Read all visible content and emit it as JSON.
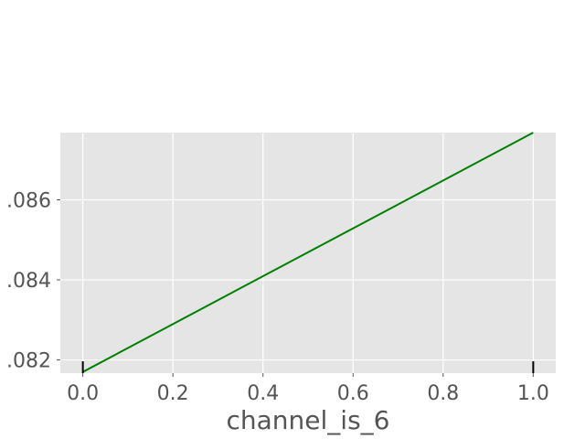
{
  "chart_data": {
    "type": "line",
    "title": "",
    "xlabel": "channel_is_6",
    "ylabel": "",
    "xlim": [
      -0.05,
      1.05
    ],
    "ylim": [
      0.08167,
      0.08768
    ],
    "x_ticks": [
      0.0,
      0.2,
      0.4,
      0.6,
      0.8,
      1.0
    ],
    "x_tick_labels": [
      "0.0",
      "0.2",
      "0.4",
      "0.6",
      "0.8",
      "1.0"
    ],
    "y_ticks": [
      0.082,
      0.084,
      0.086
    ],
    "y_tick_labels": [
      ".082",
      ".084",
      ".086"
    ],
    "grid": true,
    "series": [
      {
        "x": [
          0.0,
          1.0
        ],
        "y": [
          0.0817,
          0.08768
        ]
      }
    ],
    "rug_x": [
      0.0,
      1.0
    ],
    "colors": {
      "line": "#008000",
      "background": "#e5e5e5",
      "grid": "#ffffff",
      "rug": "#000000"
    }
  }
}
